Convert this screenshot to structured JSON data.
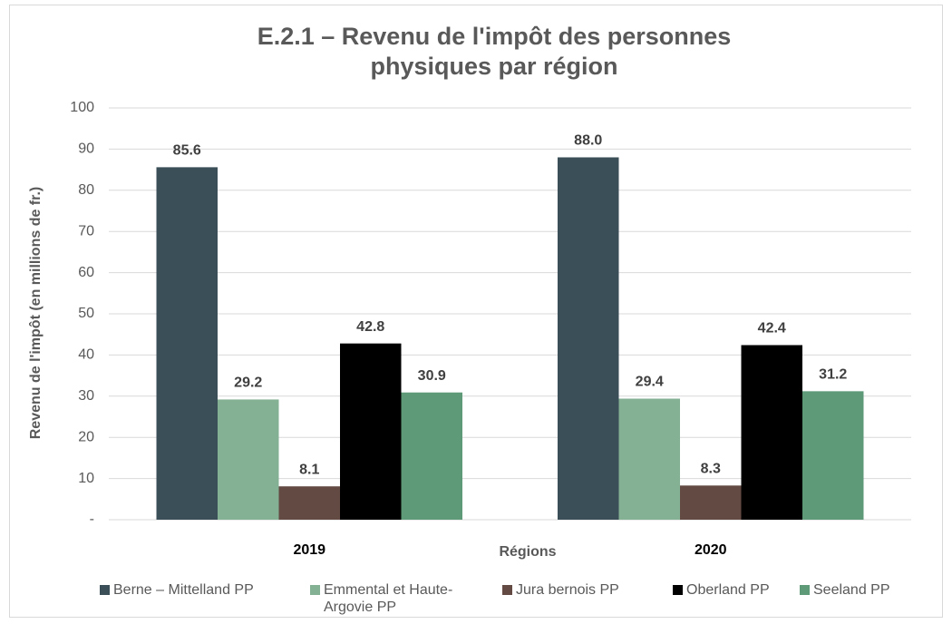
{
  "chart_data": {
    "type": "bar",
    "title": "E.2.1 – Revenu de l'impôt des personnes physiques par région",
    "x_label": "Régions",
    "y_label": "Revenu de l'impôt (en millions de fr.)",
    "categories": [
      "2019",
      "2020"
    ],
    "series": [
      {
        "name": "Berne – Mittelland PP",
        "color": "#3b4f58",
        "values": [
          85.6,
          88.0
        ],
        "value_labels": [
          "85.6",
          "88.0"
        ]
      },
      {
        "name": "Emmental et Haute-Argovie PP",
        "color": "#84b094",
        "values": [
          29.2,
          29.4
        ],
        "value_labels": [
          "29.2",
          "29.4"
        ]
      },
      {
        "name": "Jura bernois PP",
        "color": "#634a42",
        "values": [
          8.1,
          8.3
        ],
        "value_labels": [
          "8.1",
          "8.3"
        ]
      },
      {
        "name": "Oberland PP",
        "color": "#000000",
        "values": [
          42.8,
          42.4
        ],
        "value_labels": [
          "42.8",
          "42.4"
        ]
      },
      {
        "name": "Seeland PP",
        "color": "#5f9a78",
        "values": [
          30.9,
          31.2
        ],
        "value_labels": [
          "30.9",
          "31.2"
        ]
      }
    ],
    "ylim": [
      0,
      100
    ],
    "yticks": [
      {
        "value": 0,
        "label": "-"
      },
      10,
      20,
      30,
      40,
      50,
      60,
      70,
      80,
      90,
      100
    ],
    "grid": true,
    "legend": "bottom"
  }
}
